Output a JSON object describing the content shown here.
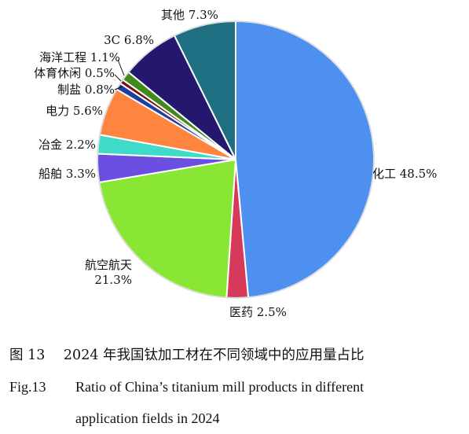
{
  "chart_data": {
    "type": "pie",
    "slices": [
      {
        "label": "化工",
        "value": 48.5,
        "text": "化工 48.5%",
        "color": "#4d90f0"
      },
      {
        "label": "医药",
        "value": 2.5,
        "text": "医药 2.5%",
        "color": "#d63a5a"
      },
      {
        "label": "航空航天",
        "value": 21.3,
        "text_lines": [
          "航空航天",
          "21.3%"
        ],
        "color": "#8ae634"
      },
      {
        "label": "船舶",
        "value": 3.3,
        "text": "船舶 3.3%",
        "color": "#6b4fe0"
      },
      {
        "label": "冶金",
        "value": 2.2,
        "text": "冶金 2.2%",
        "color": "#3fdac8"
      },
      {
        "label": "电力",
        "value": 5.6,
        "text": "电力 5.6%",
        "color": "#ff8440"
      },
      {
        "label": "制盐",
        "value": 0.8,
        "text": "制盐 0.8%",
        "color": "#1f3fa0"
      },
      {
        "label": "体育休闲",
        "value": 0.5,
        "text": "体育休闲 0.5%",
        "color": "#7a1010"
      },
      {
        "label": "海洋工程",
        "value": 1.1,
        "text": "海洋工程 1.1%",
        "color": "#3f8a1a"
      },
      {
        "label": "3C",
        "value": 6.8,
        "text": "3C 6.8%",
        "color": "#24186e"
      },
      {
        "label": "其他",
        "value": 7.3,
        "text": "其他 7.3%",
        "color": "#1e6f82"
      }
    ]
  },
  "caption": {
    "zh_num": "图 13",
    "zh_text": "2024 年我国钛加工材在不同领域中的应用量占比",
    "en_num": "Fig.13",
    "en_text_line1": "Ratio of China’s titanium mill products in different",
    "en_text_line2": "application fields in 2024"
  }
}
